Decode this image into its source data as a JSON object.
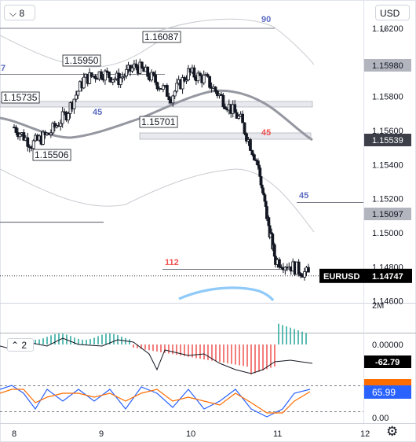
{
  "toolbar": {
    "collapse_label": "8",
    "currency_label": "USD"
  },
  "indicator_pane": {
    "label": "2"
  },
  "price_axis": {
    "ticks": [
      "1.16200",
      "1.15800",
      "1.15600",
      "1.15400",
      "1.15200",
      "1.15000",
      "1.14800",
      "1.14600"
    ],
    "volume_label": "2M"
  },
  "price_tags": [
    {
      "label": "1.15980",
      "bg": "#b2b5be",
      "fg": "#131722"
    },
    {
      "label": "1.15539",
      "bg": "#3c3f48",
      "fg": "#ffffff"
    },
    {
      "label": "1.15097",
      "bg": "#b2b5be",
      "fg": "#131722"
    }
  ],
  "symbol_tag": {
    "symbol": "EURUSD",
    "price": "1.14747",
    "bg": "#000000"
  },
  "osc_axis": {
    "ticks": [
      "0.00000",
      "0.00"
    ],
    "macd_value": "-62.79",
    "stoch_value": "65.99",
    "stoch_color": "#2962ff",
    "orange_color": "#ff6d00"
  },
  "time_axis": {
    "ticks": [
      "8",
      "9",
      "10",
      "11",
      "12"
    ]
  },
  "annotations": [
    {
      "text": "1.16087"
    },
    {
      "text": "1.15950"
    },
    {
      "text": "1.15735"
    },
    {
      "text": "1.15701"
    },
    {
      "text": "1.15506"
    }
  ],
  "ma_labels": [
    {
      "text": "90",
      "color": "#5c6bc0"
    },
    {
      "text": "45",
      "color": "#5c6bc0"
    },
    {
      "text": "45",
      "color": "#ef5350"
    },
    {
      "text": "45",
      "color": "#5c6bc0"
    },
    {
      "text": "112",
      "color": "#ef5350"
    },
    {
      "text": "7",
      "color": "#5c6bc0"
    }
  ],
  "chart_data": {
    "type": "candlestick",
    "symbol": "EURUSD",
    "x_ticks": [
      "8",
      "9",
      "10",
      "11",
      "12"
    ],
    "ylim": [
      1.1457,
      1.1625
    ],
    "last_price": 1.14747,
    "series": [
      {
        "x": 8.0,
        "y": 1.1562
      },
      {
        "x": 8.2,
        "y": 1.1552
      },
      {
        "x": 8.4,
        "y": 1.1558
      },
      {
        "x": 8.6,
        "y": 1.157
      },
      {
        "x": 8.8,
        "y": 1.159
      },
      {
        "x": 9.0,
        "y": 1.1594
      },
      {
        "x": 9.2,
        "y": 1.159
      },
      {
        "x": 9.4,
        "y": 1.1598
      },
      {
        "x": 9.6,
        "y": 1.159
      },
      {
        "x": 9.8,
        "y": 1.158
      },
      {
        "x": 10.0,
        "y": 1.1594
      },
      {
        "x": 10.2,
        "y": 1.159
      },
      {
        "x": 10.4,
        "y": 1.1578
      },
      {
        "x": 10.6,
        "y": 1.1566
      },
      {
        "x": 10.8,
        "y": 1.154
      },
      {
        "x": 10.9,
        "y": 1.151
      },
      {
        "x": 11.0,
        "y": 1.1484
      },
      {
        "x": 11.2,
        "y": 1.148
      },
      {
        "x": 11.4,
        "y": 1.1475
      }
    ],
    "oscillators": {
      "macd_last": -62.79,
      "stochastic_last": 65.99
    }
  }
}
